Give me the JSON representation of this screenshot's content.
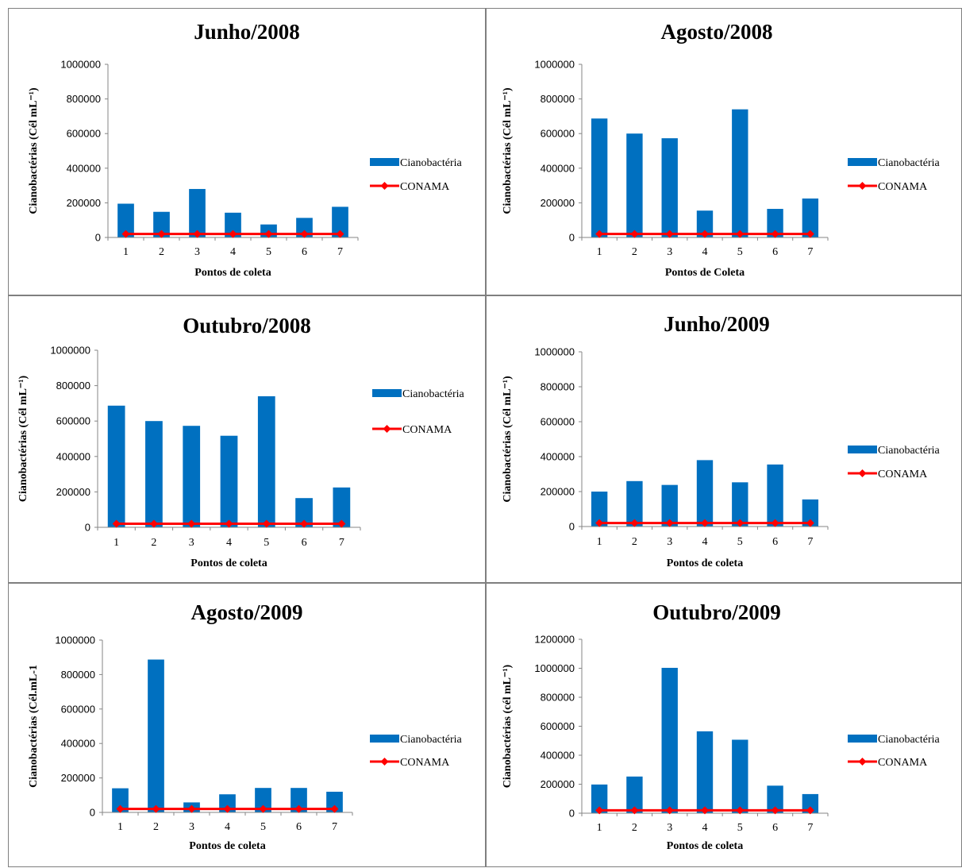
{
  "colors": {
    "bar": "#0070C0",
    "conama": "#FF0000",
    "axis": "#868686",
    "border": "#7F7F7F"
  },
  "chart_data": [
    {
      "type": "bar",
      "title": "Junho/2008",
      "xlabel": "Pontos de coleta",
      "ylabel": "Cianobactérias (Cél mL⁻¹)",
      "ylim": [
        0,
        1000000
      ],
      "yticks": [
        "0",
        "200000",
        "400000",
        "600000",
        "800000",
        "1000000"
      ],
      "categories": [
        "1",
        "2",
        "3",
        "4",
        "5",
        "6",
        "7"
      ],
      "series": [
        {
          "name": "Cianobactéria",
          "kind": "bar",
          "values": [
            195000,
            148000,
            280000,
            143000,
            75000,
            113000,
            177000
          ]
        },
        {
          "name": "CONAMA",
          "kind": "line",
          "values": [
            20000,
            20000,
            20000,
            20000,
            20000,
            20000,
            20000
          ]
        }
      ],
      "legend": "right"
    },
    {
      "type": "bar",
      "title": "Agosto/2008",
      "xlabel": "Pontos de Coleta",
      "ylabel": "Cianobactérias (Cél mL⁻¹)",
      "ylim": [
        0,
        1000000
      ],
      "yticks": [
        "0",
        "200000",
        "400000",
        "600000",
        "800000",
        "1000000"
      ],
      "categories": [
        "1",
        "2",
        "3",
        "4",
        "5",
        "6",
        "7"
      ],
      "series": [
        {
          "name": "Cianobactéria",
          "kind": "bar",
          "values": [
            687000,
            600000,
            573000,
            155000,
            740000,
            165000,
            225000
          ]
        },
        {
          "name": "CONAMA",
          "kind": "line",
          "values": [
            20000,
            20000,
            20000,
            20000,
            20000,
            20000,
            20000
          ]
        }
      ],
      "legend": "right"
    },
    {
      "type": "bar",
      "title": "Outubro/2008",
      "xlabel": "Pontos de coleta",
      "ylabel": "Cianobactérias (Cél mL⁻¹)",
      "ylim": [
        0,
        1000000
      ],
      "yticks": [
        "0",
        "200000",
        "400000",
        "600000",
        "800000",
        "1000000"
      ],
      "categories": [
        "1",
        "2",
        "3",
        "4",
        "5",
        "6",
        "7"
      ],
      "series": [
        {
          "name": "Cianobactéria",
          "kind": "bar",
          "values": [
            687000,
            600000,
            573000,
            517000,
            740000,
            165000,
            225000
          ]
        },
        {
          "name": "CONAMA",
          "kind": "line",
          "values": [
            20000,
            20000,
            20000,
            20000,
            20000,
            20000,
            20000
          ]
        }
      ],
      "legend": "right"
    },
    {
      "type": "bar",
      "title": "Junho/2009",
      "xlabel": "Pontos de coleta",
      "ylabel": "Cianobactérias (Cél mL⁻¹)",
      "ylim": [
        0,
        1000000
      ],
      "yticks": [
        "0",
        "200000",
        "400000",
        "600000",
        "800000",
        "1000000"
      ],
      "categories": [
        "1",
        "2",
        "3",
        "4",
        "5",
        "6",
        "7"
      ],
      "series": [
        {
          "name": "Cianobactéria",
          "kind": "bar",
          "values": [
            200000,
            260000,
            238000,
            380000,
            253000,
            355000,
            155000
          ]
        },
        {
          "name": "CONAMA",
          "kind": "line",
          "values": [
            20000,
            20000,
            20000,
            20000,
            20000,
            20000,
            20000
          ]
        }
      ],
      "legend": "right"
    },
    {
      "type": "bar",
      "title": "Agosto/2009",
      "xlabel": "Pontos de coleta",
      "ylabel": "Cianobactérias (Cél.mL-1",
      "ylim": [
        0,
        1000000
      ],
      "yticks": [
        "0",
        "200000",
        "400000",
        "600000",
        "800000",
        "1000000"
      ],
      "categories": [
        "1",
        "2",
        "3",
        "4",
        "5",
        "6",
        "7"
      ],
      "series": [
        {
          "name": "Cianobactéria",
          "kind": "bar",
          "values": [
            140000,
            887000,
            58000,
            105000,
            142000,
            142000,
            120000
          ]
        },
        {
          "name": "CONAMA",
          "kind": "line",
          "values": [
            20000,
            20000,
            20000,
            20000,
            20000,
            20000,
            20000
          ]
        }
      ],
      "legend": "right"
    },
    {
      "type": "bar",
      "title": "Outubro/2009",
      "xlabel": "Pontos de coleta",
      "ylabel": "Cianobactérias (cél mL⁻¹)",
      "ylim": [
        0,
        1200000
      ],
      "yticks": [
        "0",
        "200000",
        "400000",
        "600000",
        "800000",
        "1000000",
        "1200000"
      ],
      "categories": [
        "1",
        "2",
        "3",
        "4",
        "5",
        "6",
        "7"
      ],
      "series": [
        {
          "name": "Cianobactéria",
          "kind": "bar",
          "values": [
            198000,
            253000,
            1003000,
            565000,
            507000,
            190000,
            132000
          ]
        },
        {
          "name": "CONAMA",
          "kind": "line",
          "values": [
            20000,
            20000,
            20000,
            20000,
            20000,
            20000,
            20000
          ]
        }
      ],
      "legend": "right"
    }
  ]
}
